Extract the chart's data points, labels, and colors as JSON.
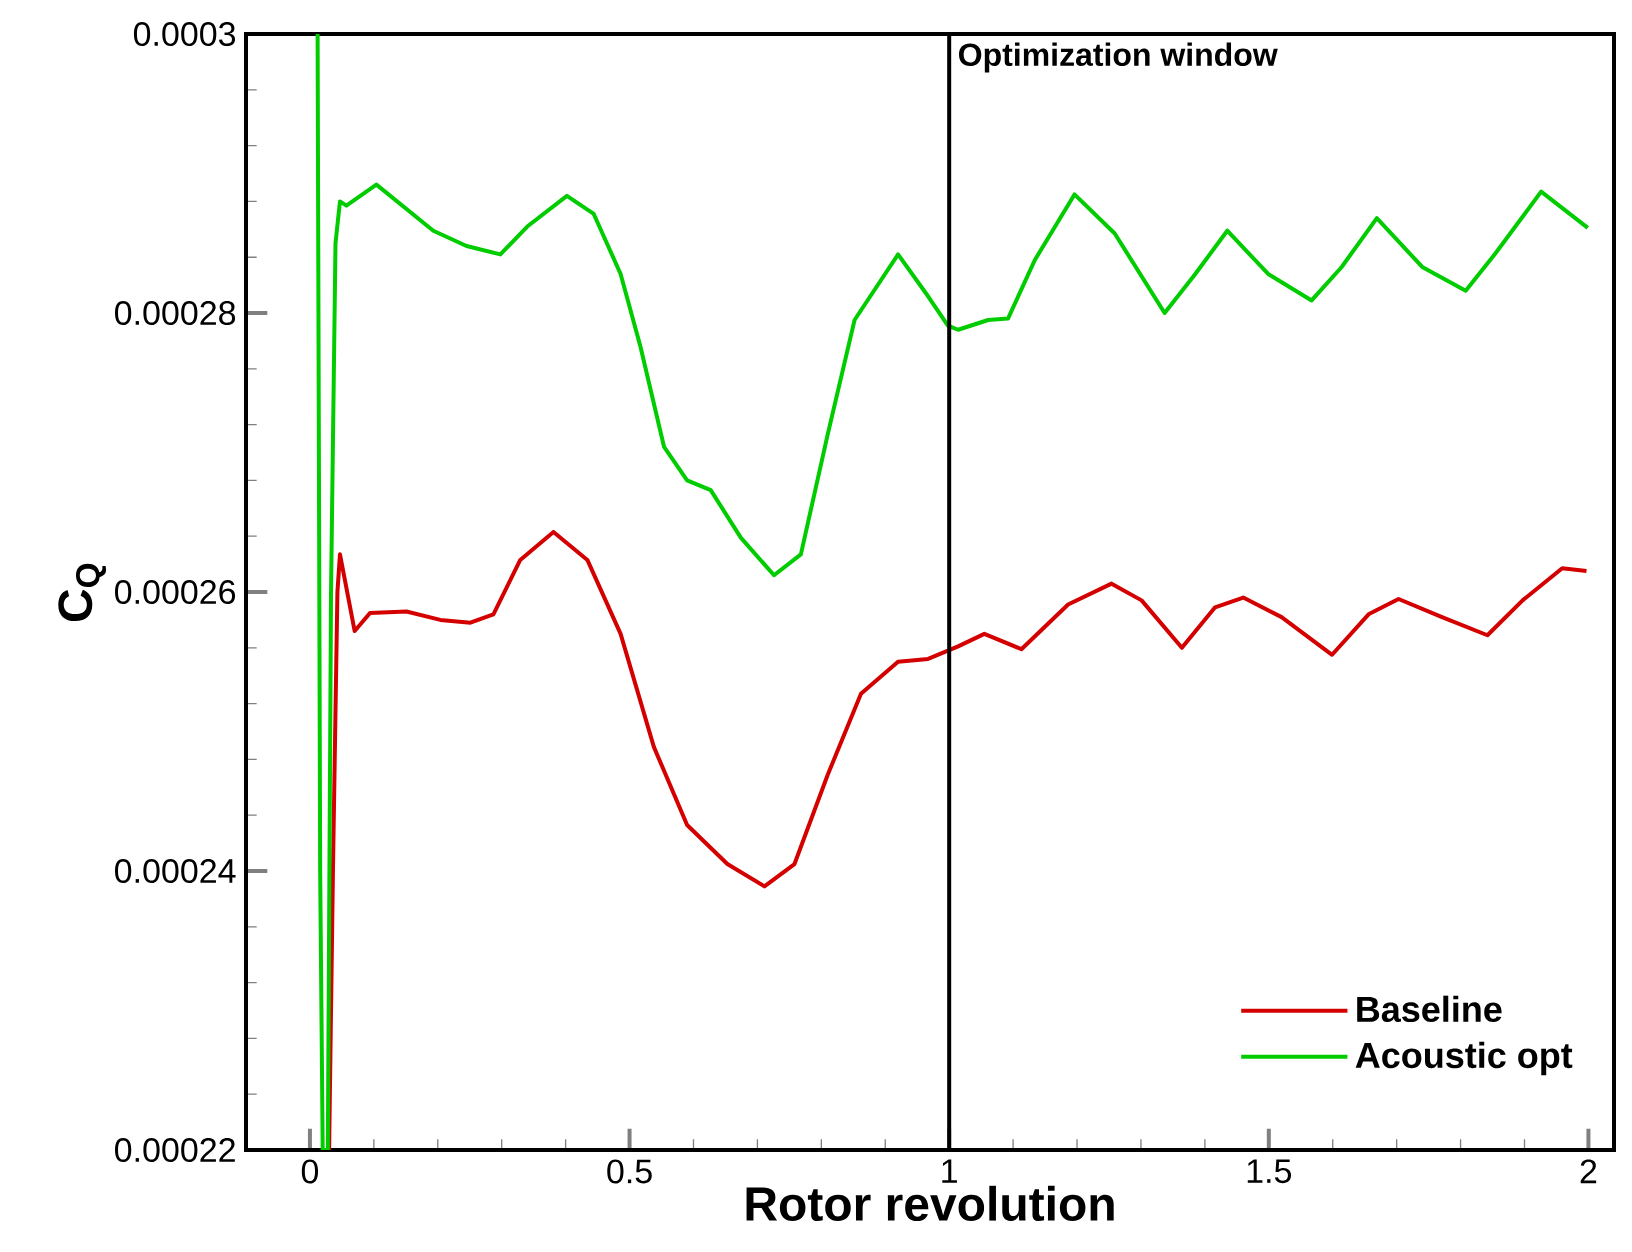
{
  "chart_data": {
    "type": "line",
    "xlabel": "Rotor revolution",
    "ylabel": "C$_{Q}$",
    "xlim": [
      -0.1,
      2.04
    ],
    "ylim": [
      0.00022,
      0.0003
    ],
    "xticks": [
      0,
      0.5,
      1,
      1.5,
      2
    ],
    "yticks": [
      {
        "value": 0.00022,
        "label": "0.00022"
      },
      {
        "value": 0.00024,
        "label": "0.00024"
      },
      {
        "value": 0.00026,
        "label": "0.00026"
      },
      {
        "value": 0.00028,
        "label": "0.00028"
      },
      {
        "value": 0.0003,
        "label": "0.0003"
      }
    ],
    "grid": false,
    "legend": "bottom right",
    "marker": "none",
    "line_style": "solid",
    "ref_lines": [
      {
        "axis": "x",
        "value": 1,
        "label": "Optimization window",
        "color": "#000000"
      }
    ],
    "series": [
      {
        "name": "Baseline",
        "color": "#d40000",
        "x": [
          0.03,
          0.036,
          0.043,
          0.047,
          0.07,
          0.094,
          0.151,
          0.204,
          0.251,
          0.287,
          0.329,
          0.381,
          0.434,
          0.486,
          0.538,
          0.59,
          0.653,
          0.711,
          0.758,
          0.81,
          0.862,
          0.92,
          0.967,
          1.014,
          1.055,
          1.113,
          1.186,
          1.254,
          1.301,
          1.364,
          1.416,
          1.46,
          1.52,
          1.599,
          1.656,
          1.703,
          1.771,
          1.842,
          1.897,
          1.959,
          1.997
        ],
        "values": [
          0.00022,
          0.00024,
          0.00026,
          0.0002627,
          0.0002572,
          0.0002585,
          0.0002586,
          0.000258,
          0.0002578,
          0.0002584,
          0.0002623,
          0.0002643,
          0.0002623,
          0.000257,
          0.0002489,
          0.0002433,
          0.0002405,
          0.0002389,
          0.0002405,
          0.0002469,
          0.0002527,
          0.000255,
          0.0002552,
          0.0002561,
          0.000257,
          0.0002559,
          0.0002591,
          0.0002606,
          0.0002594,
          0.000256,
          0.0002589,
          0.0002596,
          0.0002582,
          0.0002555,
          0.0002584,
          0.0002595,
          0.0002582,
          0.0002569,
          0.0002594,
          0.0002617,
          0.0002615
        ]
      },
      {
        "name": "Acoustic opt",
        "color": "#00cc00",
        "x": [
          0.012,
          0.016,
          0.02,
          0.028,
          0.033,
          0.04,
          0.047,
          0.057,
          0.104,
          0.193,
          0.245,
          0.298,
          0.34,
          0.402,
          0.444,
          0.486,
          0.517,
          0.554,
          0.59,
          0.627,
          0.674,
          0.726,
          0.768,
          0.81,
          0.852,
          0.92,
          0.967,
          0.998,
          1.014,
          1.061,
          1.092,
          1.134,
          1.196,
          1.259,
          1.337,
          1.385,
          1.435,
          1.499,
          1.567,
          1.614,
          1.669,
          1.74,
          1.808,
          1.855,
          1.926,
          1.999
        ],
        "values": [
          0.0003,
          0.00024,
          0.00022,
          0.00022,
          0.00026,
          0.000285,
          0.000288,
          0.0002877,
          0.0002892,
          0.0002859,
          0.0002848,
          0.0002842,
          0.0002862,
          0.0002884,
          0.0002871,
          0.0002828,
          0.0002776,
          0.0002704,
          0.000268,
          0.0002673,
          0.0002639,
          0.0002612,
          0.0002627,
          0.0002713,
          0.0002795,
          0.0002842,
          0.0002812,
          0.0002791,
          0.0002788,
          0.0002795,
          0.0002796,
          0.0002838,
          0.0002885,
          0.0002857,
          0.00028,
          0.0002828,
          0.0002859,
          0.0002828,
          0.0002809,
          0.0002833,
          0.0002868,
          0.0002833,
          0.0002816,
          0.0002843,
          0.0002887,
          0.0002861
        ]
      }
    ]
  }
}
